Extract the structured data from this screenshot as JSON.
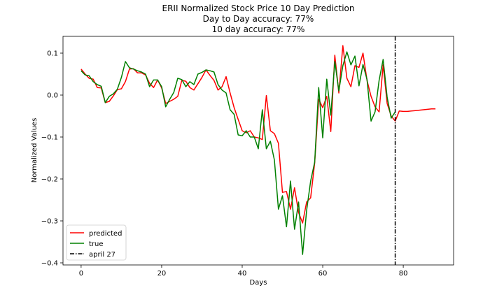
{
  "chart_data": {
    "type": "line",
    "title_lines": [
      "ERII Normalized Stock Price 10 Day Prediction",
      "Day to Day accuracy: 77%",
      "10 day accuracy: 77%"
    ],
    "xlabel": "Days",
    "ylabel": "Normalized Values",
    "xlim": [
      -4.5,
      92.5
    ],
    "ylim": [
      -0.405,
      0.14
    ],
    "xticks": [
      0,
      20,
      40,
      60,
      80
    ],
    "yticks": [
      -0.4,
      -0.3,
      -0.2,
      -0.1,
      0.0,
      0.1
    ],
    "ytick_labels": [
      "−0.4",
      "−0.3",
      "−0.2",
      "−0.1",
      "0.0",
      "0.1"
    ],
    "grid": false,
    "legend_position": "lower-left",
    "vline": {
      "x": 78,
      "label": "april 27",
      "color": "#000000",
      "style": "dashdot"
    },
    "series": [
      {
        "name": "predicted",
        "color": "#ff0000",
        "x": [
          0,
          1,
          2,
          3,
          4,
          5,
          6,
          7,
          8,
          9,
          10,
          11,
          12,
          13,
          14,
          15,
          16,
          17,
          18,
          19,
          20,
          21,
          22,
          23,
          24,
          25,
          26,
          27,
          28,
          29,
          30,
          31,
          32,
          33,
          34,
          35,
          36,
          37,
          38,
          39,
          40,
          41,
          42,
          43,
          44,
          45,
          46,
          47,
          48,
          49,
          50,
          51,
          52,
          53,
          54,
          55,
          56,
          57,
          58,
          59,
          60,
          61,
          62,
          63,
          64,
          65,
          66,
          67,
          68,
          69,
          70,
          71,
          72,
          73,
          74,
          75,
          76,
          77,
          78,
          79,
          80,
          81,
          82,
          83,
          84,
          85,
          86,
          87,
          88
        ],
        "y": [
          0.062,
          0.05,
          0.04,
          0.038,
          0.018,
          0.017,
          -0.018,
          -0.015,
          -0.002,
          0.013,
          0.015,
          0.032,
          0.062,
          0.063,
          0.053,
          0.053,
          0.048,
          0.028,
          0.018,
          0.036,
          0.017,
          -0.02,
          -0.015,
          -0.01,
          -0.003,
          0.035,
          0.033,
          0.018,
          0.012,
          0.027,
          0.042,
          0.06,
          0.047,
          0.035,
          0.012,
          0.02,
          0.044,
          0.005,
          -0.03,
          -0.058,
          -0.085,
          -0.09,
          -0.085,
          -0.1,
          -0.102,
          -0.106,
          -0.001,
          -0.085,
          -0.092,
          -0.115,
          -0.232,
          -0.23,
          -0.272,
          -0.221,
          -0.28,
          -0.305,
          -0.255,
          -0.245,
          -0.162,
          -0.01,
          -0.03,
          -0.003,
          -0.087,
          0.095,
          0.005,
          0.118,
          0.04,
          0.02,
          0.07,
          0.066,
          0.1,
          0.035,
          -0.003,
          -0.028,
          -0.04,
          0.072,
          -0.02,
          -0.05,
          -0.062,
          -0.038,
          -0.039,
          -0.039,
          -0.038,
          -0.037,
          -0.036,
          -0.035,
          -0.034,
          -0.033,
          -0.033
        ]
      },
      {
        "name": "true",
        "color": "#008000",
        "x": [
          0,
          1,
          2,
          3,
          4,
          5,
          6,
          7,
          8,
          9,
          10,
          11,
          12,
          13,
          14,
          15,
          16,
          17,
          18,
          19,
          20,
          21,
          22,
          23,
          24,
          25,
          26,
          27,
          28,
          29,
          30,
          31,
          32,
          33,
          34,
          35,
          36,
          37,
          38,
          39,
          40,
          41,
          42,
          43,
          44,
          45,
          46,
          47,
          48,
          49,
          50,
          51,
          52,
          53,
          54,
          55,
          56,
          57,
          58,
          59,
          60,
          61,
          62,
          63,
          64,
          65,
          66,
          67,
          68,
          69,
          70,
          71,
          72,
          73,
          74,
          75,
          76,
          77,
          78
        ],
        "y": [
          0.058,
          0.048,
          0.046,
          0.032,
          0.025,
          0.021,
          -0.018,
          -0.003,
          0.003,
          0.014,
          0.042,
          0.08,
          0.065,
          0.062,
          0.058,
          0.055,
          0.05,
          0.02,
          0.036,
          0.036,
          0.02,
          -0.028,
          -0.01,
          0.006,
          0.04,
          0.037,
          0.02,
          0.032,
          0.025,
          0.05,
          0.054,
          0.06,
          0.058,
          0.055,
          0.025,
          0.012,
          0.005,
          -0.035,
          -0.046,
          -0.095,
          -0.097,
          -0.085,
          -0.1,
          -0.1,
          -0.128,
          -0.035,
          -0.128,
          -0.11,
          -0.155,
          -0.272,
          -0.24,
          -0.314,
          -0.205,
          -0.32,
          -0.255,
          -0.38,
          -0.275,
          -0.205,
          -0.16,
          0.018,
          -0.102,
          0.038,
          -0.048,
          0.08,
          0.01,
          0.07,
          0.103,
          0.072,
          0.093,
          0.022,
          0.073,
          0.037,
          -0.062,
          -0.04,
          0.035,
          0.085,
          -0.005,
          -0.055,
          -0.04
        ]
      }
    ]
  }
}
